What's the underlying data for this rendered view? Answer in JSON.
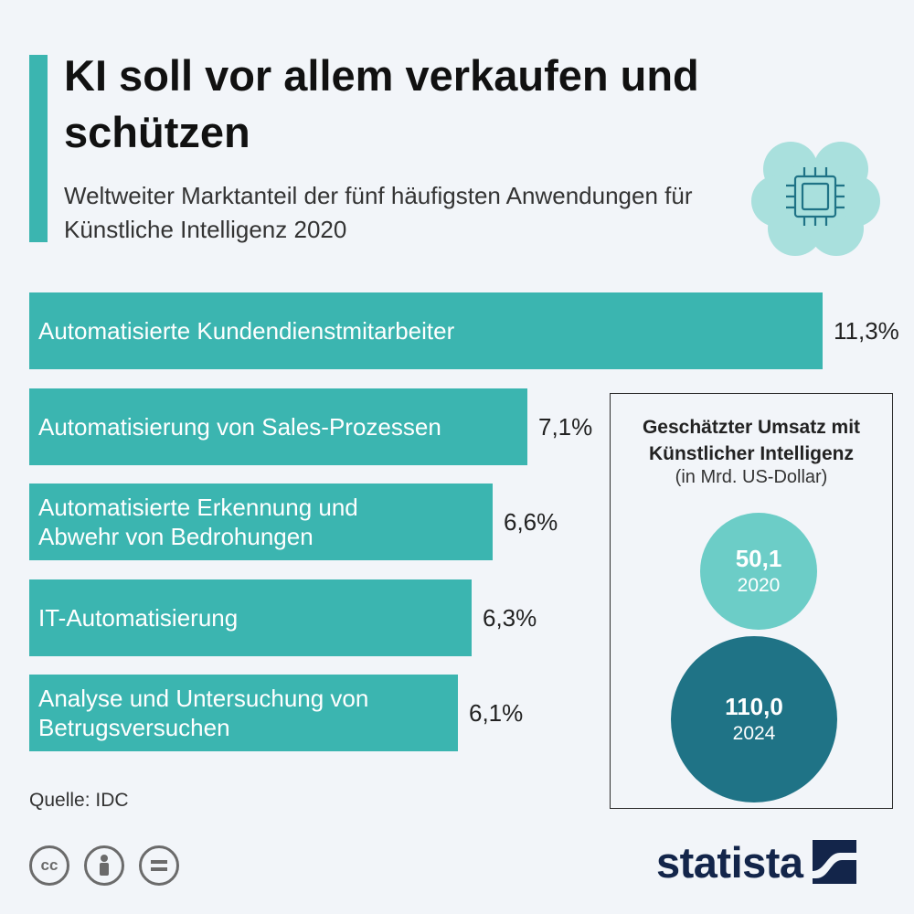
{
  "header": {
    "title": "KI soll vor allem verkaufen und schützen",
    "subtitle": "Weltweiter Marktanteil der fünf häufigsten Anwendungen für Künstliche Intelligenz 2020"
  },
  "chart_data": {
    "type": "bar",
    "orientation": "horizontal",
    "categories": [
      "Automatisierte Kundendienstmitarbeiter",
      "Automatisierung von Sales-Prozessen",
      "Automatisierte Erkennung und Abwehr von Bedrohungen",
      "IT-Automatisierung",
      "Analyse und Untersuchung von Betrugsversuchen"
    ],
    "category_labels": [
      "Automatisierte Kundendienstmitarbeiter",
      "Automatisierung von Sales-Prozessen",
      "Automatisierte Erkennung und\nAbwehr von Bedrohungen",
      "IT-Automatisierung",
      "Analyse und Untersuchung von\nBetrugsversuchen"
    ],
    "values": [
      11.3,
      7.1,
      6.6,
      6.3,
      6.1
    ],
    "value_labels": [
      "11,3%",
      "7,1%",
      "6,6%",
      "6,3%",
      "6,1%"
    ],
    "xlim": [
      0,
      13
    ],
    "grid": false,
    "colors": {
      "bar": "#3bb5b0"
    }
  },
  "revenue": {
    "title": "Geschätzter Umsatz mit Künstlicher Intelligenz",
    "subtitle": "(in Mrd. US-Dollar)",
    "items": [
      {
        "value": "50,1",
        "year": "2020",
        "color": "#6ccdc7"
      },
      {
        "value": "110,0",
        "year": "2024",
        "color": "#1f7386"
      }
    ]
  },
  "footer": {
    "source": "Quelle: IDC",
    "license_icons": [
      "cc-icon",
      "by-person-icon",
      "nd-equals-icon"
    ],
    "logo_text": "statista"
  },
  "colors": {
    "accent": "#3bb5b0",
    "background": "#f2f5f9",
    "brand": "#13254a"
  }
}
